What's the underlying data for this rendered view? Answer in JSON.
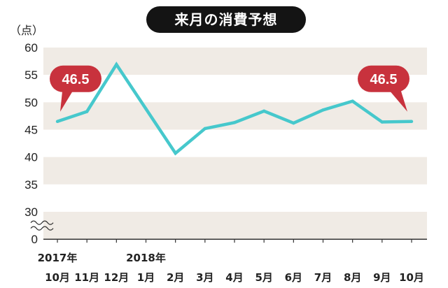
{
  "chart_data": {
    "type": "line",
    "title": "来月の消費予想",
    "ylabel": "（点）",
    "xlabel": "",
    "x_tick_labels": [
      {
        "year": "2017年",
        "month": "10月"
      },
      {
        "month": "11月"
      },
      {
        "month": "12月"
      },
      {
        "year": "2018年",
        "month": "1月"
      },
      {
        "month": "2月"
      },
      {
        "month": "3月"
      },
      {
        "month": "4月"
      },
      {
        "month": "5月"
      },
      {
        "month": "6月"
      },
      {
        "month": "7月"
      },
      {
        "month": "8月"
      },
      {
        "month": "9月"
      },
      {
        "month": "10月"
      }
    ],
    "series": [
      {
        "values": [
          46.5,
          48.3,
          56.9,
          48.8,
          40.7,
          45.2,
          46.3,
          48.4,
          46.2,
          48.6,
          50.2,
          46.4,
          46.5
        ],
        "data_labels": [
          "46.5",
          null,
          null,
          null,
          null,
          null,
          null,
          null,
          null,
          null,
          null,
          null,
          "46.5"
        ],
        "color": "#46c8cc"
      }
    ],
    "yticks": [
      0,
      30,
      35,
      40,
      45,
      50,
      55,
      60
    ],
    "ylim": [
      0,
      60
    ],
    "y_axis_break": [
      0,
      30
    ],
    "grid": false,
    "banded_background": true,
    "legend": false
  },
  "colors": {
    "line": "#46c8cc",
    "callout": "#c8323d",
    "title_background": "#141414",
    "title_text": "#ffffff",
    "band": "#f0ebe5",
    "axis": "#333333",
    "text": "#222222"
  }
}
